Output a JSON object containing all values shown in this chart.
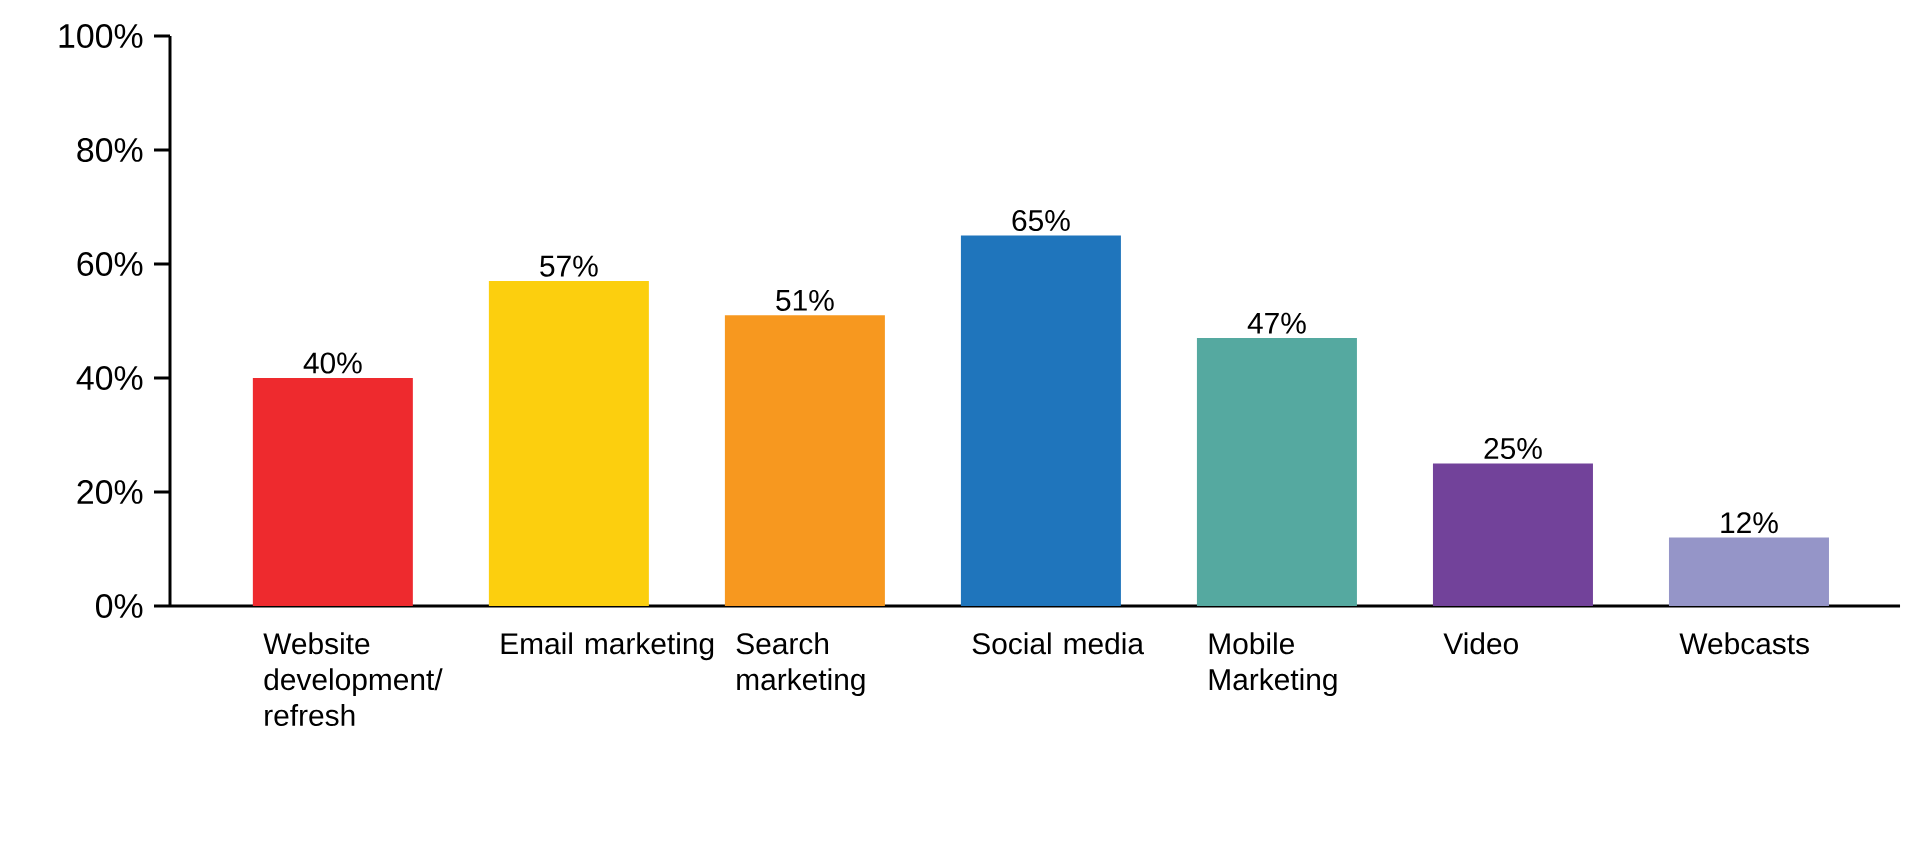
{
  "chart_data": {
    "type": "bar",
    "categories": [
      "Website development/ refresh",
      "Email marketing",
      "Search marketing",
      "Social media",
      "Mobile Marketing",
      "Video",
      "Webcasts"
    ],
    "values": [
      40,
      57,
      51,
      65,
      47,
      25,
      12
    ],
    "value_labels": [
      "40%",
      "57%",
      "51%",
      "65%",
      "47%",
      "25%",
      "12%"
    ],
    "colors": [
      "#ee2a2e",
      "#fccf0e",
      "#f7981f",
      "#1f75bc",
      "#55a9a0",
      "#72429a",
      "#9595c8"
    ],
    "ylim": [
      0,
      100
    ],
    "yticks": [
      {
        "value": 0,
        "label": "0%"
      },
      {
        "value": 20,
        "label": "20%"
      },
      {
        "value": 40,
        "label": "40%"
      },
      {
        "value": 60,
        "label": "60%"
      },
      {
        "value": 80,
        "label": "80%"
      },
      {
        "value": 100,
        "label": "100%"
      }
    ]
  }
}
